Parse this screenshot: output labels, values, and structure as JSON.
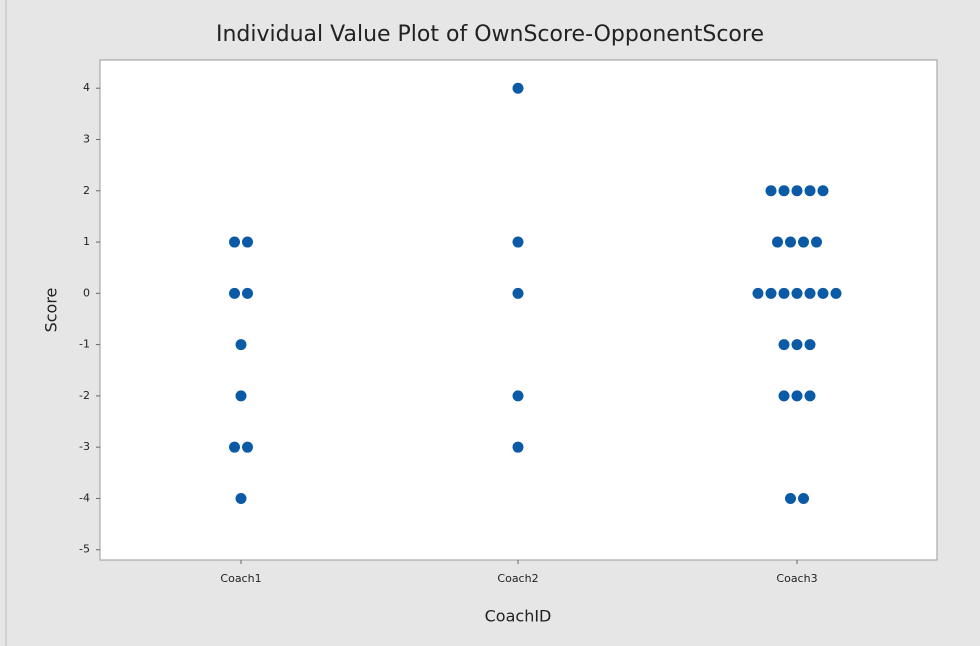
{
  "chart_data": {
    "type": "individual_value",
    "title": "Individual Value Plot of OwnScore-OpponentScore",
    "x_label": "CoachID",
    "y_label": "Score",
    "categories": [
      "Coach1",
      "Coach2",
      "Coach3"
    ],
    "values": [
      [
        1,
        1,
        0,
        0,
        -1,
        -2,
        -3,
        -3,
        -4
      ],
      [
        4,
        1,
        0,
        -2,
        -3
      ],
      [
        2,
        2,
        2,
        2,
        2,
        1,
        1,
        1,
        1,
        0,
        0,
        0,
        0,
        0,
        0,
        0,
        -1,
        -1,
        -1,
        -2,
        -2,
        -2,
        -4,
        -4
      ]
    ],
    "color": "#0b5aa6",
    "ylim": [
      -5.2,
      4.55
    ],
    "yticks": [
      -5,
      -4,
      -3,
      -2,
      -1,
      0,
      1,
      2,
      3,
      4
    ]
  }
}
